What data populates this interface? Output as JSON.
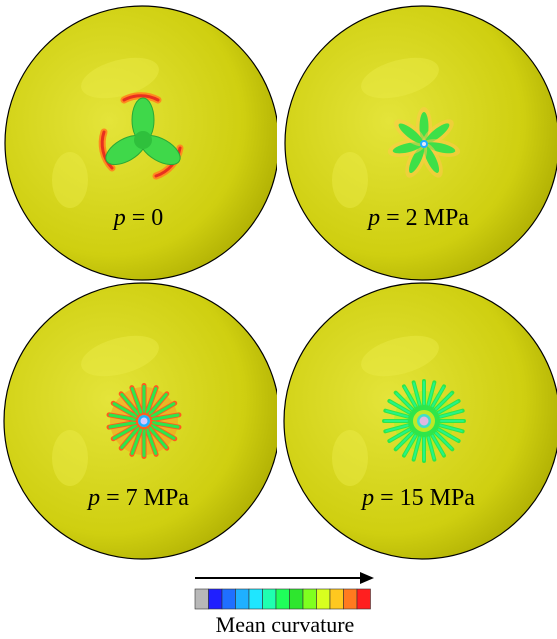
{
  "panels": [
    {
      "symbol": "p",
      "value": "= 0"
    },
    {
      "symbol": "p",
      "value": "= 2 MPa"
    },
    {
      "symbol": "p",
      "value": "= 7 MPa"
    },
    {
      "symbol": "p",
      "value": "= 15 MPa"
    }
  ],
  "legend": {
    "title": "Mean curvature",
    "colors": [
      "#b8b8b8",
      "#1f1fff",
      "#1f6fff",
      "#1fb0ff",
      "#1fe6ff",
      "#1fffb0",
      "#1fff5a",
      "#2ee62e",
      "#7fff1f",
      "#d8ff1f",
      "#ffc81f",
      "#ff7a1f",
      "#ff1f1f"
    ]
  },
  "colors": {
    "sphere": "#d6d61a",
    "sphere_highlight": "#ecec4a"
  }
}
